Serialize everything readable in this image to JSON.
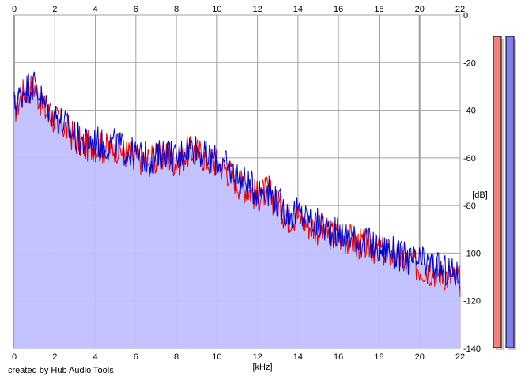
{
  "chart_data": {
    "type": "area",
    "xlabel": "[kHz]",
    "ylabel": "[dB]",
    "xlim": [
      0,
      22
    ],
    "ylim": [
      -140,
      0
    ],
    "xticks": [
      0,
      2,
      4,
      6,
      8,
      10,
      12,
      14,
      16,
      18,
      20,
      22
    ],
    "yticks": [
      0,
      -20,
      -40,
      -60,
      -80,
      -100,
      -120,
      -140
    ],
    "grid": true,
    "legend": "none",
    "series": [
      {
        "color": "#ee0000",
        "x": [
          0,
          0.5,
          1,
          1.5,
          2,
          2.5,
          3,
          3.5,
          4,
          4.5,
          5,
          5.5,
          6,
          6.5,
          7,
          7.5,
          8,
          8.5,
          9,
          9.5,
          10,
          10.5,
          11,
          11.5,
          12,
          12.5,
          13,
          13.5,
          14,
          14.5,
          15,
          15.5,
          16,
          16.5,
          17,
          17.5,
          18,
          18.5,
          19,
          19.5,
          20,
          20.5,
          21,
          21.5,
          22
        ],
        "values": [
          -40,
          -32,
          -30,
          -40,
          -44,
          -47,
          -52,
          -55,
          -55,
          -56,
          -55,
          -58,
          -60,
          -61,
          -61,
          -59,
          -62,
          -58,
          -57,
          -61,
          -62,
          -65,
          -70,
          -73,
          -76,
          -74,
          -80,
          -85,
          -84,
          -88,
          -90,
          -92,
          -93,
          -94,
          -96,
          -97,
          -99,
          -100,
          -102,
          -104,
          -106,
          -107,
          -108,
          -110,
          -112
        ]
      },
      {
        "color": "#0000cc",
        "x": [
          0,
          0.5,
          1,
          1.5,
          2,
          2.5,
          3,
          3.5,
          4,
          4.5,
          5,
          5.5,
          6,
          6.5,
          7,
          7.5,
          8,
          8.5,
          9,
          9.5,
          10,
          10.5,
          11,
          11.5,
          12,
          12.5,
          13,
          13.5,
          14,
          14.5,
          15,
          15.5,
          16,
          16.5,
          17,
          17.5,
          18,
          18.5,
          19,
          19.5,
          20,
          20.5,
          21,
          21.5,
          22
        ],
        "values": [
          -38,
          -31,
          -29,
          -38,
          -42,
          -46,
          -51,
          -54,
          -53,
          -55,
          -54,
          -57,
          -59,
          -60,
          -60,
          -57,
          -61,
          -55,
          -56,
          -60,
          -61,
          -64,
          -68,
          -71,
          -74,
          -73,
          -79,
          -83,
          -83,
          -86,
          -88,
          -90,
          -92,
          -93,
          -95,
          -96,
          -98,
          -99,
          -101,
          -103,
          -104,
          -105,
          -107,
          -108,
          -110
        ]
      }
    ],
    "area_fill": "#c0c0ff"
  },
  "meters": [
    {
      "color": "#f08080",
      "level": 1.0
    },
    {
      "color": "#8080f0",
      "level": 1.0
    }
  ],
  "credit": "created by Hub Audio Tools"
}
